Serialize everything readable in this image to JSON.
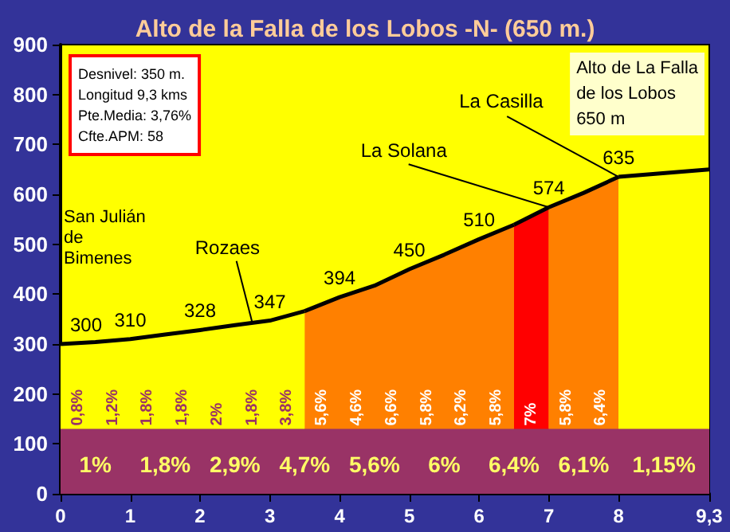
{
  "chart_data": {
    "type": "area",
    "title": "Alto de la Falla de los Lobos -N- (650 m.)",
    "series": [
      {
        "color": "#ffff00",
        "x": [
          0,
          0.5,
          1,
          1.5,
          2,
          2.5,
          3,
          3.5
        ],
        "values": [
          300,
          304,
          310,
          319,
          328,
          338,
          347,
          366
        ]
      },
      {
        "color": "#ff8000",
        "x": [
          3.5,
          4,
          4.5,
          5,
          5.5,
          6,
          6.5
        ],
        "values": [
          366,
          394,
          417,
          450,
          479,
          510,
          539
        ]
      },
      {
        "color": "#ff0000",
        "x": [
          6.5,
          7
        ],
        "values": [
          539,
          574
        ]
      },
      {
        "color": "#ff8000",
        "x": [
          7,
          7.5,
          8
        ],
        "values": [
          574,
          603,
          635
        ]
      },
      {
        "color": "#ffff00",
        "x": [
          8,
          9.3
        ],
        "values": [
          635,
          650
        ]
      }
    ],
    "xlim": [
      0,
      9.3
    ],
    "xticks": [
      0,
      1,
      2,
      3,
      4,
      5,
      6,
      7,
      8,
      {
        "value": 9.3,
        "label": "9,3"
      }
    ],
    "ylim": [
      0,
      900
    ],
    "yticks": [
      0,
      100,
      200,
      300,
      400,
      500,
      600,
      700,
      800,
      900
    ],
    "grid": false,
    "bands": [
      {
        "axis": "y",
        "from": 0,
        "to": 130,
        "color": "#993366"
      }
    ],
    "annotations": [
      "Desnivel: 350 m.\nLongitud 9,3 kms\nPte.Media: 3,76%\nCfte.APM: 58",
      "Alto de La Falla\nde los Lobos\n650 m",
      "San Julián\nde\nBimenes",
      "0,8%",
      "1,2%",
      "1,8%",
      "1,8%",
      "2%",
      "1,8%",
      "3,8%",
      "5,6%",
      "4,6%",
      "6,6%",
      "5,8%",
      "6,2%",
      "5,8%",
      "7%",
      "5,8%",
      "6,4%",
      "1%",
      "1,8%",
      "2,9%",
      "4,7%",
      "5,6%",
      "6%",
      "6,4%",
      "6,1%",
      "1,15%",
      {
        "text": "Rozaes",
        "x": 2.75,
        "y": 342
      },
      {
        "text": "La Solana",
        "x": 7,
        "y": 574
      },
      {
        "text": "La Casilla",
        "x": 8,
        "y": 635
      },
      {
        "text": "300",
        "x": 0,
        "y": 300
      },
      {
        "text": "310",
        "x": 1,
        "y": 310
      },
      {
        "text": "328",
        "x": 2,
        "y": 328
      },
      {
        "text": "347",
        "x": 3,
        "y": 347
      },
      {
        "text": "394",
        "x": 4,
        "y": 394
      },
      {
        "text": "450",
        "x": 5,
        "y": 450
      },
      {
        "text": "510",
        "x": 6,
        "y": 510
      },
      {
        "text": "574",
        "x": 7,
        "y": 574
      },
      {
        "text": "635",
        "x": 8,
        "y": 635
      }
    ]
  }
}
